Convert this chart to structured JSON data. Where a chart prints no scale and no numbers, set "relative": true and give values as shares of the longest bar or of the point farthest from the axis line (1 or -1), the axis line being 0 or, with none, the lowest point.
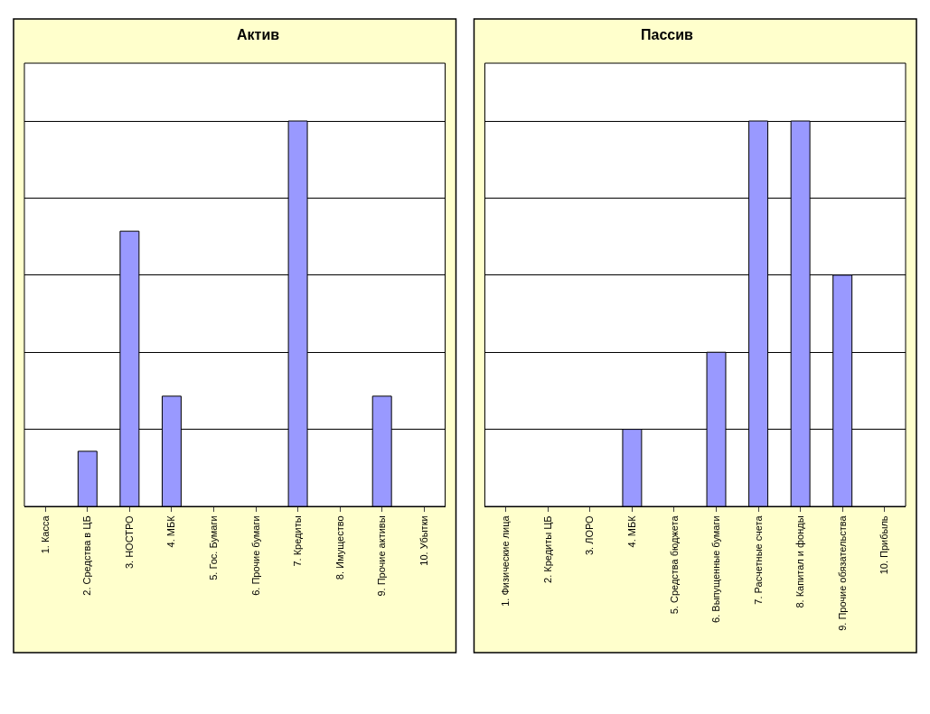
{
  "chart_data": [
    {
      "type": "bar",
      "title": "Актив",
      "relative": true,
      "grid": "y",
      "color": "#9999ff",
      "categories": [
        "1. Касса",
        "2. Средства в ЦБ",
        "3. НОСТРО",
        "4. МБК",
        "5. Гос. Бумаги",
        "6. Прочие бумаги",
        "7. Кредиты",
        "8. Имущество",
        "9. Прочие активы",
        "10. Убытки"
      ],
      "values": [
        0,
        0.143,
        0.714,
        0.286,
        0,
        0,
        1,
        0,
        0.286,
        0
      ]
    },
    {
      "type": "bar",
      "title": "Пассив",
      "relative": true,
      "grid": "y",
      "color": "#9999ff",
      "categories": [
        "1. Физические лица",
        "2. Кредиты ЦБ",
        "3. ЛОРО",
        "4. МБК",
        "5. Средства бюджета",
        "6. Выпущенные бумаги",
        "7. Расчетные счета",
        "8. Капитал и фонды",
        "9. Прочие обязательства",
        "10. Прибыль"
      ],
      "values": [
        0,
        0,
        0,
        0.2,
        0,
        0.4,
        1,
        1,
        0.6,
        0
      ]
    }
  ]
}
